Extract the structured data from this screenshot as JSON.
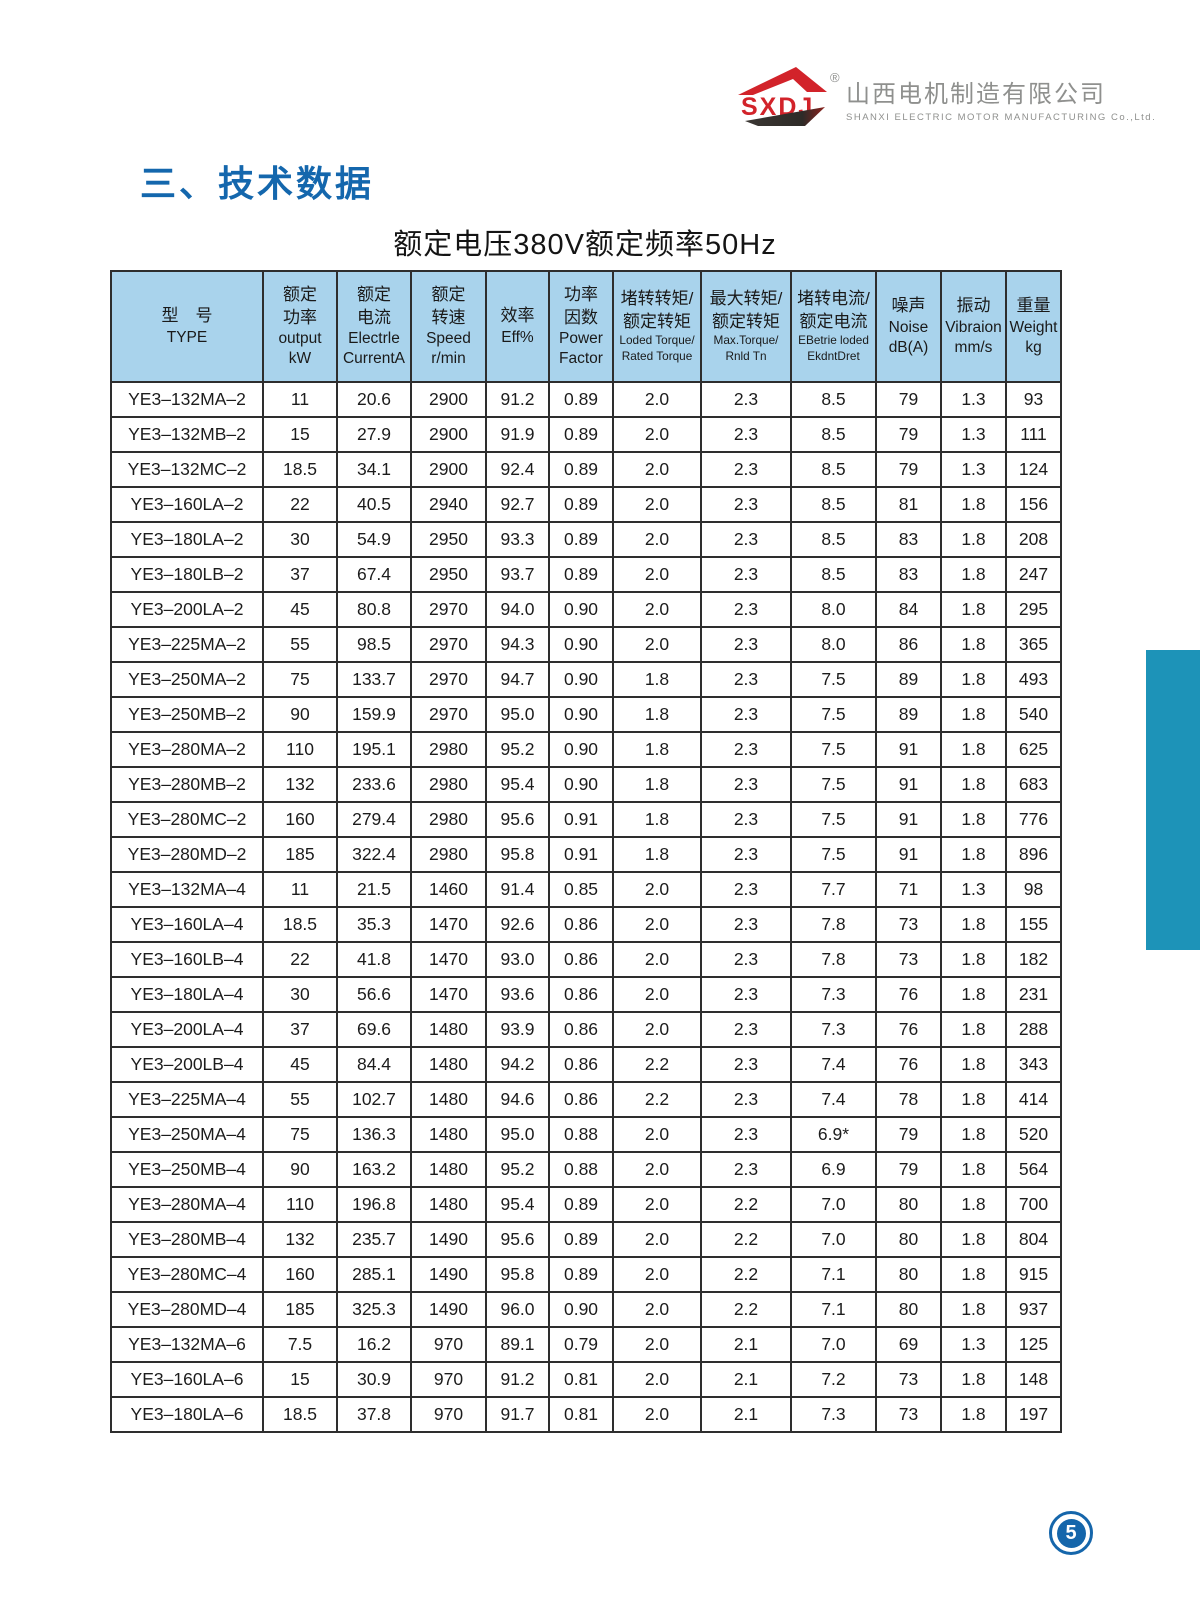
{
  "page": {
    "section_title": "三、技术数据",
    "table_caption": "额定电压380V额定频率50Hz",
    "page_number": "5"
  },
  "logo": {
    "mark_text": "SXDJ",
    "registered": "®",
    "company_zh": "山西电机制造有限公司",
    "company_en": "SHANXI  ELECTRIC  MOTOR  MANUFACTURING  Co.,Ltd."
  },
  "colors": {
    "title_blue": "#1467ad",
    "header_bg": "#a9d3ec",
    "table_border": "#2e2e2e",
    "sidebar_teal": "#1d93b8",
    "badge_blue": "#1566ab",
    "logo_red": "#d2232a",
    "logo_gray": "#8f908e"
  },
  "table": {
    "columns": [
      {
        "id": "type",
        "lines": [
          "型　号",
          "TYPE"
        ]
      },
      {
        "id": "rated-power",
        "lines": [
          "额定",
          "功率",
          "output",
          "kW"
        ]
      },
      {
        "id": "rated-current",
        "lines": [
          "额定",
          "电流",
          "Electrle",
          "CurrentA"
        ]
      },
      {
        "id": "rated-speed",
        "lines": [
          "额定",
          "转速",
          "Speed",
          "r/min"
        ]
      },
      {
        "id": "efficiency",
        "lines": [
          "效率",
          "Eff%"
        ]
      },
      {
        "id": "power-factor",
        "lines": [
          "功率",
          "因数",
          "Power",
          "Factor"
        ]
      },
      {
        "id": "locked-torque-ratio",
        "lines": [
          "堵转转矩/",
          "额定转矩",
          "Loded Torque/",
          "Rated Torque"
        ],
        "small_en": true
      },
      {
        "id": "max-torque-ratio",
        "lines": [
          "最大转矩/",
          "额定转矩",
          "Max.Torque/",
          "Rnld Tn"
        ],
        "small_en": true
      },
      {
        "id": "locked-current-ratio",
        "lines": [
          "堵转电流/",
          "额定电流",
          "EBetrie loded",
          "EkdntDret"
        ],
        "small_en": true
      },
      {
        "id": "noise",
        "lines": [
          "噪声",
          "Noise",
          "dB(A)"
        ]
      },
      {
        "id": "vibration",
        "lines": [
          "振动",
          "Vibraion",
          "mm/s"
        ]
      },
      {
        "id": "weight",
        "lines": [
          "重量",
          "Weight",
          "kg"
        ]
      }
    ],
    "rows": [
      [
        "YE3–132MA–2",
        "11",
        "20.6",
        "2900",
        "91.2",
        "0.89",
        "2.0",
        "2.3",
        "8.5",
        "79",
        "1.3",
        "93"
      ],
      [
        "YE3–132MB–2",
        "15",
        "27.9",
        "2900",
        "91.9",
        "0.89",
        "2.0",
        "2.3",
        "8.5",
        "79",
        "1.3",
        "111"
      ],
      [
        "YE3–132MC–2",
        "18.5",
        "34.1",
        "2900",
        "92.4",
        "0.89",
        "2.0",
        "2.3",
        "8.5",
        "79",
        "1.3",
        "124"
      ],
      [
        "YE3–160LA–2",
        "22",
        "40.5",
        "2940",
        "92.7",
        "0.89",
        "2.0",
        "2.3",
        "8.5",
        "81",
        "1.8",
        "156"
      ],
      [
        "YE3–180LA–2",
        "30",
        "54.9",
        "2950",
        "93.3",
        "0.89",
        "2.0",
        "2.3",
        "8.5",
        "83",
        "1.8",
        "208"
      ],
      [
        "YE3–180LB–2",
        "37",
        "67.4",
        "2950",
        "93.7",
        "0.89",
        "2.0",
        "2.3",
        "8.5",
        "83",
        "1.8",
        "247"
      ],
      [
        "YE3–200LA–2",
        "45",
        "80.8",
        "2970",
        "94.0",
        "0.90",
        "2.0",
        "2.3",
        "8.0",
        "84",
        "1.8",
        "295"
      ],
      [
        "YE3–225MA–2",
        "55",
        "98.5",
        "2970",
        "94.3",
        "0.90",
        "2.0",
        "2.3",
        "8.0",
        "86",
        "1.8",
        "365"
      ],
      [
        "YE3–250MA–2",
        "75",
        "133.7",
        "2970",
        "94.7",
        "0.90",
        "1.8",
        "2.3",
        "7.5",
        "89",
        "1.8",
        "493"
      ],
      [
        "YE3–250MB–2",
        "90",
        "159.9",
        "2970",
        "95.0",
        "0.90",
        "1.8",
        "2.3",
        "7.5",
        "89",
        "1.8",
        "540"
      ],
      [
        "YE3–280MA–2",
        "110",
        "195.1",
        "2980",
        "95.2",
        "0.90",
        "1.8",
        "2.3",
        "7.5",
        "91",
        "1.8",
        "625"
      ],
      [
        "YE3–280MB–2",
        "132",
        "233.6",
        "2980",
        "95.4",
        "0.90",
        "1.8",
        "2.3",
        "7.5",
        "91",
        "1.8",
        "683"
      ],
      [
        "YE3–280MC–2",
        "160",
        "279.4",
        "2980",
        "95.6",
        "0.91",
        "1.8",
        "2.3",
        "7.5",
        "91",
        "1.8",
        "776"
      ],
      [
        "YE3–280MD–2",
        "185",
        "322.4",
        "2980",
        "95.8",
        "0.91",
        "1.8",
        "2.3",
        "7.5",
        "91",
        "1.8",
        "896"
      ],
      [
        "YE3–132MA–4",
        "11",
        "21.5",
        "1460",
        "91.4",
        "0.85",
        "2.0",
        "2.3",
        "7.7",
        "71",
        "1.3",
        "98"
      ],
      [
        "YE3–160LA–4",
        "18.5",
        "35.3",
        "1470",
        "92.6",
        "0.86",
        "2.0",
        "2.3",
        "7.8",
        "73",
        "1.8",
        "155"
      ],
      [
        "YE3–160LB–4",
        "22",
        "41.8",
        "1470",
        "93.0",
        "0.86",
        "2.0",
        "2.3",
        "7.8",
        "73",
        "1.8",
        "182"
      ],
      [
        "YE3–180LA–4",
        "30",
        "56.6",
        "1470",
        "93.6",
        "0.86",
        "2.0",
        "2.3",
        "7.3",
        "76",
        "1.8",
        "231"
      ],
      [
        "YE3–200LA–4",
        "37",
        "69.6",
        "1480",
        "93.9",
        "0.86",
        "2.0",
        "2.3",
        "7.3",
        "76",
        "1.8",
        "288"
      ],
      [
        "YE3–200LB–4",
        "45",
        "84.4",
        "1480",
        "94.2",
        "0.86",
        "2.2",
        "2.3",
        "7.4",
        "76",
        "1.8",
        "343"
      ],
      [
        "YE3–225MA–4",
        "55",
        "102.7",
        "1480",
        "94.6",
        "0.86",
        "2.2",
        "2.3",
        "7.4",
        "78",
        "1.8",
        "414"
      ],
      [
        "YE3–250MA–4",
        "75",
        "136.3",
        "1480",
        "95.0",
        "0.88",
        "2.0",
        "2.3",
        "6.9*",
        "79",
        "1.8",
        "520"
      ],
      [
        "YE3–250MB–4",
        "90",
        "163.2",
        "1480",
        "95.2",
        "0.88",
        "2.0",
        "2.3",
        "6.9",
        "79",
        "1.8",
        "564"
      ],
      [
        "YE3–280MA–4",
        "110",
        "196.8",
        "1480",
        "95.4",
        "0.89",
        "2.0",
        "2.2",
        "7.0",
        "80",
        "1.8",
        "700"
      ],
      [
        "YE3–280MB–4",
        "132",
        "235.7",
        "1490",
        "95.6",
        "0.89",
        "2.0",
        "2.2",
        "7.0",
        "80",
        "1.8",
        "804"
      ],
      [
        "YE3–280MC–4",
        "160",
        "285.1",
        "1490",
        "95.8",
        "0.89",
        "2.0",
        "2.2",
        "7.1",
        "80",
        "1.8",
        "915"
      ],
      [
        "YE3–280MD–4",
        "185",
        "325.3",
        "1490",
        "96.0",
        "0.90",
        "2.0",
        "2.2",
        "7.1",
        "80",
        "1.8",
        "937"
      ],
      [
        "YE3–132MA–6",
        "7.5",
        "16.2",
        "970",
        "89.1",
        "0.79",
        "2.0",
        "2.1",
        "7.0",
        "69",
        "1.3",
        "125"
      ],
      [
        "YE3–160LA–6",
        "15",
        "30.9",
        "970",
        "91.2",
        "0.81",
        "2.0",
        "2.1",
        "7.2",
        "73",
        "1.8",
        "148"
      ],
      [
        "YE3–180LA–6",
        "18.5",
        "37.8",
        "970",
        "91.7",
        "0.81",
        "2.0",
        "2.1",
        "7.3",
        "73",
        "1.8",
        "197"
      ]
    ]
  }
}
